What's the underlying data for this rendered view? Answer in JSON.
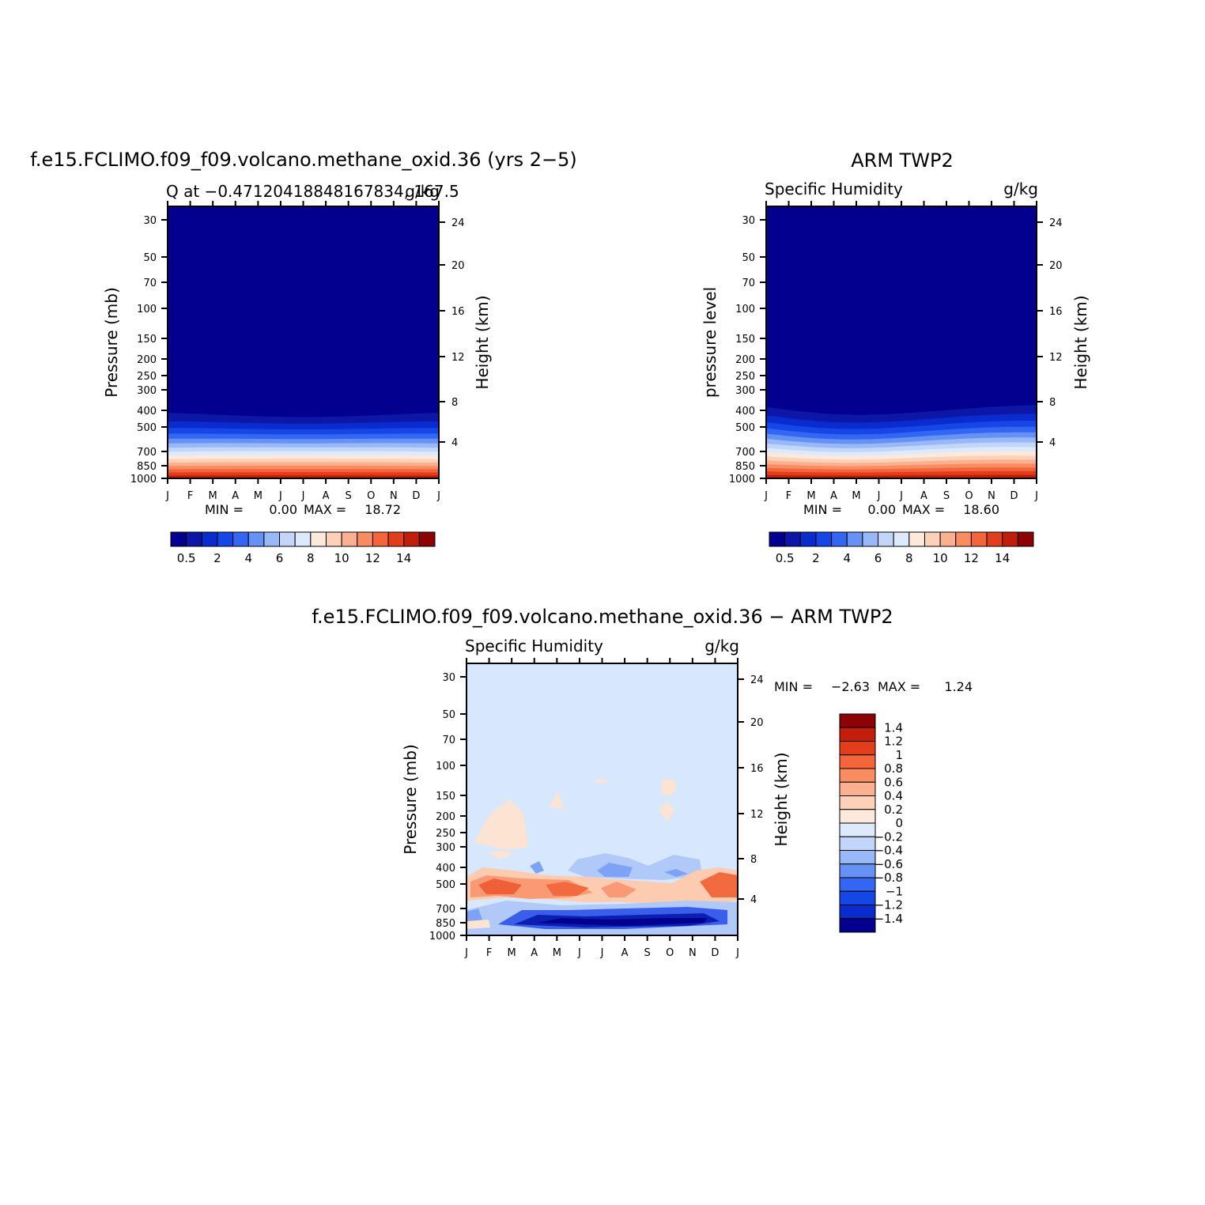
{
  "figure": {
    "panel1_title": "f.e15.FCLIMO.f09_f09.volcano.methane_oxid.36 (yrs 2−5)",
    "panel1_subtitle_left": "Q at −0.47120418848167834, 167.5",
    "panel1_subtitle_right": "g/kg",
    "panel2_title": "ARM TWP2",
    "panel2_subtitle_left": "Specific Humidity",
    "panel2_subtitle_right": "g/kg",
    "panel3_title": "f.e15.FCLIMO.f09_f09.volcano.methane_oxid.36 − ARM TWP2",
    "panel3_subtitle_left": "Specific Humidity",
    "panel3_subtitle_right": "g/kg"
  },
  "chart_data": [
    {
      "type": "heatmap",
      "title": "f.e15.FCLIMO.f09_f09.volcano.methane_oxid.36 (yrs 2−5)",
      "ylabel": "Pressure (mb)",
      "y2label": "Height (km)",
      "x_ticks": [
        "J",
        "F",
        "M",
        "A",
        "M",
        "J",
        "J",
        "A",
        "S",
        "O",
        "N",
        "D",
        "J"
      ],
      "y_ticks": [
        "30",
        "50",
        "70",
        "100",
        "150",
        "200",
        "250",
        "300",
        "400",
        "500",
        "700",
        "850",
        "1000"
      ],
      "y2_ticks": [
        "24",
        "20",
        "16",
        "12",
        "8",
        "4"
      ],
      "min_label": "MIN =",
      "min_value": "0.00",
      "max_label": "MAX =",
      "max_value": "18.72",
      "colorbar_labels": [
        "0.5",
        "2",
        "4",
        "6",
        "8",
        "10",
        "12",
        "14"
      ]
    },
    {
      "type": "heatmap",
      "title": "ARM TWP2",
      "ylabel": "pressure level",
      "y2label": "Height (km)",
      "x_ticks": [
        "J",
        "F",
        "M",
        "A",
        "M",
        "J",
        "J",
        "A",
        "S",
        "O",
        "N",
        "D",
        "J"
      ],
      "y_ticks": [
        "30",
        "50",
        "70",
        "100",
        "150",
        "200",
        "250",
        "300",
        "400",
        "500",
        "700",
        "850",
        "1000"
      ],
      "y2_ticks": [
        "24",
        "20",
        "16",
        "12",
        "8",
        "4"
      ],
      "min_label": "MIN =",
      "min_value": "0.00",
      "max_label": "MAX =",
      "max_value": "18.60",
      "colorbar_labels": [
        "0.5",
        "2",
        "4",
        "6",
        "8",
        "10",
        "12",
        "14"
      ]
    },
    {
      "type": "heatmap",
      "title": "f.e15.FCLIMO.f09_f09.volcano.methane_oxid.36 − ARM TWP2",
      "ylabel": "Pressure (mb)",
      "y2label": "Height (km)",
      "x_ticks": [
        "J",
        "F",
        "M",
        "A",
        "M",
        "J",
        "J",
        "A",
        "S",
        "O",
        "N",
        "D",
        "J"
      ],
      "y_ticks": [
        "30",
        "50",
        "70",
        "100",
        "150",
        "200",
        "250",
        "300",
        "400",
        "500",
        "700",
        "850",
        "1000"
      ],
      "y2_ticks": [
        "24",
        "20",
        "16",
        "12",
        "8",
        "4"
      ],
      "min_label": "MIN =",
      "min_value": "−2.63",
      "max_label": "MAX =",
      "max_value": "1.24",
      "colorbar_labels": [
        "1.4",
        "1.2",
        "1",
        "0.8",
        "0.6",
        "0.4",
        "0.2",
        "0",
        "−0.2",
        "−0.4",
        "−0.6",
        "−0.8",
        "−1",
        "−1.2",
        "−1.4"
      ]
    }
  ],
  "colors": {
    "scale": [
      "#03008f",
      "#0c17a8",
      "#0a2ccf",
      "#1547e6",
      "#3366f2",
      "#6692f5",
      "#99b8f7",
      "#c2d6fa",
      "#dde9fc",
      "#fde9dc",
      "#fcd1b8",
      "#fbb090",
      "#fa8c62",
      "#f5653c",
      "#e33e1c",
      "#c21e0c",
      "#8c0306"
    ]
  }
}
